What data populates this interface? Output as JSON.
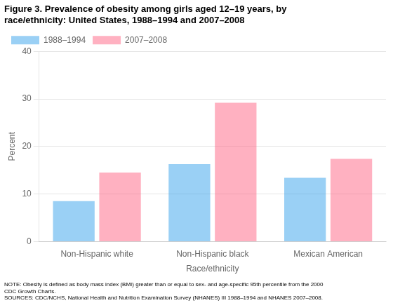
{
  "chart_data": {
    "type": "bar",
    "title": "Figure 3. Prevalence of obesity among girls aged 12–19 years, by\nrace/ethnicity: United States, 1988–1994 and 2007–2008",
    "categories": [
      "Non-Hispanic white",
      "Non-Hispanic black",
      "Mexican American"
    ],
    "series": [
      {
        "name": "1988–1994",
        "values": [
          8.5,
          16.3,
          13.4
        ]
      },
      {
        "name": "2007–2008",
        "values": [
          14.5,
          29.2,
          17.4
        ]
      }
    ],
    "xlabel": "Race/ethnicity",
    "ylabel": "Percent",
    "ylim": [
      0,
      40
    ],
    "yticks": [
      0,
      10,
      20,
      30,
      40
    ],
    "grid": true,
    "legend": "upper left",
    "annotations": [
      "NOTE: Obesity is defined as body mass index (BMI) greater than or equal to sex- and age-specific 95th percentile from the 2000\nCDC Growth Charts.\nSOURCES: CDC/NCHS, National Health and Nutrition Examination Survey (NHANES) III 1988–1994 and NHANES 2007–2008."
    ]
  }
}
